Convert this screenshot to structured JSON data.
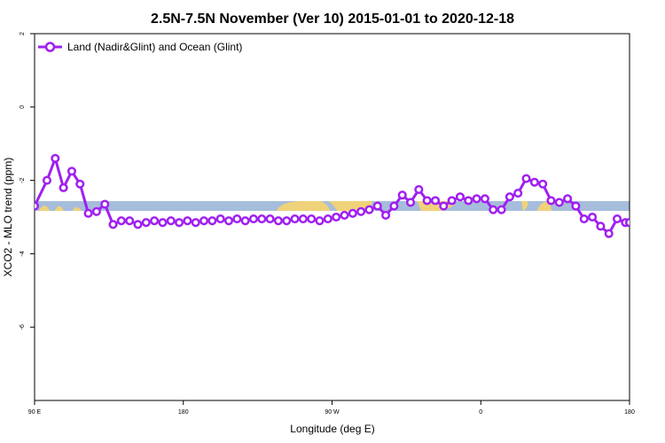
{
  "chart_data": {
    "type": "line",
    "title": "2.5N-7.5N November (Ver 10)   2015-01-01 to 2020-12-18",
    "xlabel": "Longitude (deg E)",
    "ylabel": "XCO2 - MLO trend (ppm)",
    "xlim": [
      90,
      450
    ],
    "ylim": [
      -8,
      2
    ],
    "x_ticks": [
      {
        "value": 90,
        "label": "90 E"
      },
      {
        "value": 180,
        "label": "180"
      },
      {
        "value": 270,
        "label": "90 W"
      },
      {
        "value": 360,
        "label": "0"
      },
      {
        "value": 450,
        "label": "180"
      }
    ],
    "y_ticks": [
      {
        "value": 2,
        "label": "2"
      },
      {
        "value": 0,
        "label": "0"
      },
      {
        "value": -2,
        "label": "-2"
      },
      {
        "value": -4,
        "label": "-4"
      },
      {
        "value": -6,
        "label": "-6"
      }
    ],
    "grid": false,
    "legend": {
      "position": "top-left"
    },
    "series": [
      {
        "name": "Land (Nadir&Glint) and Ocean (Glint)",
        "color": "#a020f0",
        "x": [
          90,
          97.5,
          102.5,
          107.5,
          112.5,
          117.5,
          122.5,
          127.5,
          132.5,
          137.5,
          142.5,
          147.5,
          152.5,
          157.5,
          162.5,
          167.5,
          172.5,
          177.5,
          182.5,
          187.5,
          192.5,
          197.5,
          202.5,
          207.5,
          212.5,
          217.5,
          222.5,
          227.5,
          232.5,
          237.5,
          242.5,
          247.5,
          252.5,
          257.5,
          262.5,
          267.5,
          272.5,
          277.5,
          282.5,
          287.5,
          292.5,
          297.5,
          302.5,
          307.5,
          312.5,
          317.5,
          322.5,
          327.5,
          332.5,
          337.5,
          342.5,
          347.5,
          352.5,
          357.5,
          362.5,
          367.5,
          372.5,
          377.5,
          382.5,
          387.5,
          392.5,
          397.5,
          402.5,
          407.5,
          412.5,
          417.5,
          422.5,
          427.5,
          432.5,
          437.5,
          442.5,
          447.5,
          450
        ],
        "y": [
          -2.7,
          -2.0,
          -1.4,
          -2.2,
          -1.75,
          -2.1,
          -2.9,
          -2.85,
          -2.65,
          -3.2,
          -3.1,
          -3.1,
          -3.2,
          -3.15,
          -3.1,
          -3.15,
          -3.1,
          -3.15,
          -3.1,
          -3.15,
          -3.1,
          -3.1,
          -3.05,
          -3.1,
          -3.05,
          -3.1,
          -3.05,
          -3.05,
          -3.05,
          -3.1,
          -3.1,
          -3.05,
          -3.05,
          -3.05,
          -3.1,
          -3.05,
          -3.0,
          -2.95,
          -2.9,
          -2.85,
          -2.8,
          -2.7,
          -2.95,
          -2.7,
          -2.4,
          -2.6,
          -2.25,
          -2.55,
          -2.55,
          -2.7,
          -2.55,
          -2.45,
          -2.55,
          -2.5,
          -2.5,
          -2.8,
          -2.8,
          -2.45,
          -2.35,
          -1.95,
          -2.05,
          -2.1,
          -2.55,
          -2.6,
          -2.5,
          -2.7,
          -3.05,
          -3.0,
          -3.25,
          -3.45,
          -3.05,
          -3.15,
          -3.15
        ]
      }
    ]
  }
}
